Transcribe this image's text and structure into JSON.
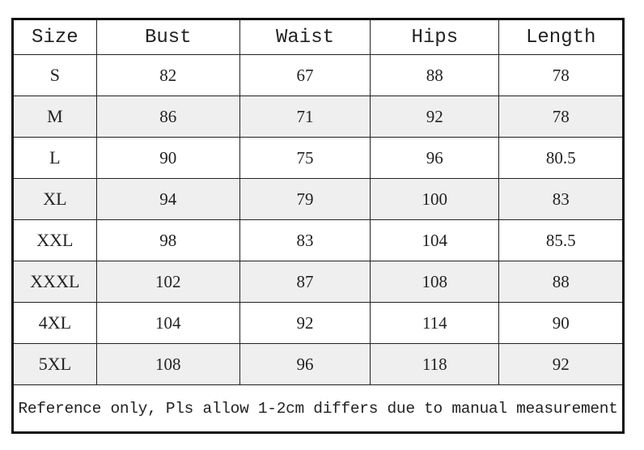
{
  "table": {
    "headers": [
      "Size",
      "Bust",
      "Waist",
      "Hips",
      "Length"
    ],
    "rows": [
      [
        "S",
        "82",
        "67",
        "88",
        "78"
      ],
      [
        "M",
        "86",
        "71",
        "92",
        "78"
      ],
      [
        "L",
        "90",
        "75",
        "96",
        "80.5"
      ],
      [
        "XL",
        "94",
        "79",
        "100",
        "83"
      ],
      [
        "XXL",
        "98",
        "83",
        "104",
        "85.5"
      ],
      [
        "XXXL",
        "102",
        "87",
        "108",
        "88"
      ],
      [
        "4XL",
        "104",
        "92",
        "114",
        "90"
      ],
      [
        "5XL",
        "108",
        "96",
        "118",
        "92"
      ]
    ],
    "note": "Reference only, Pls allow 1-2cm differs due to manual measurement"
  },
  "colors": {
    "border": "#111111",
    "alt_row": "#efefef"
  }
}
